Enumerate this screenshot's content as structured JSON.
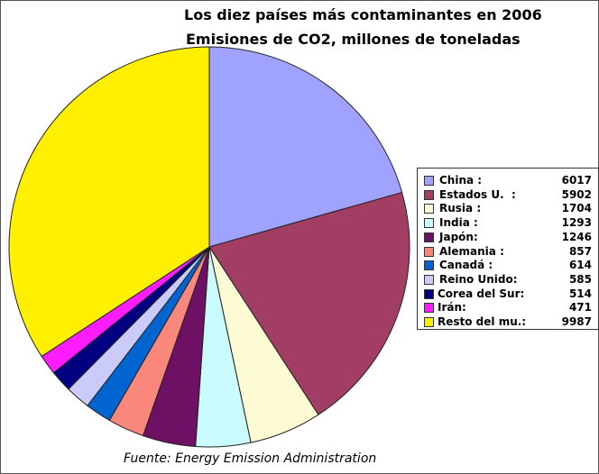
{
  "chart_data": {
    "type": "pie",
    "title": "Los diez países más contaminantes en 2006",
    "subtitle": "Emisiones de CO2, millones de toneladas",
    "source": "Fuente: Energy Emission Administration",
    "legend_position": "right",
    "categories": [
      "China :",
      "Estados U.  :",
      "Rusia :",
      "India :",
      "Japón:",
      "Alemania :",
      "Canadá :",
      "Reino Unido:",
      "Corea del Sur:",
      "Irán:",
      "Resto del mu.:"
    ],
    "values": [
      6017,
      5902,
      1704,
      1293,
      1246,
      857,
      614,
      585,
      514,
      471,
      9987
    ],
    "colors": [
      "#9fa3ff",
      "#a23d63",
      "#fdfbd3",
      "#c9fbff",
      "#6e1064",
      "#f9877b",
      "#0065d1",
      "#cbcbf9",
      "#000080",
      "#ff1cff",
      "#ffef00"
    ]
  }
}
